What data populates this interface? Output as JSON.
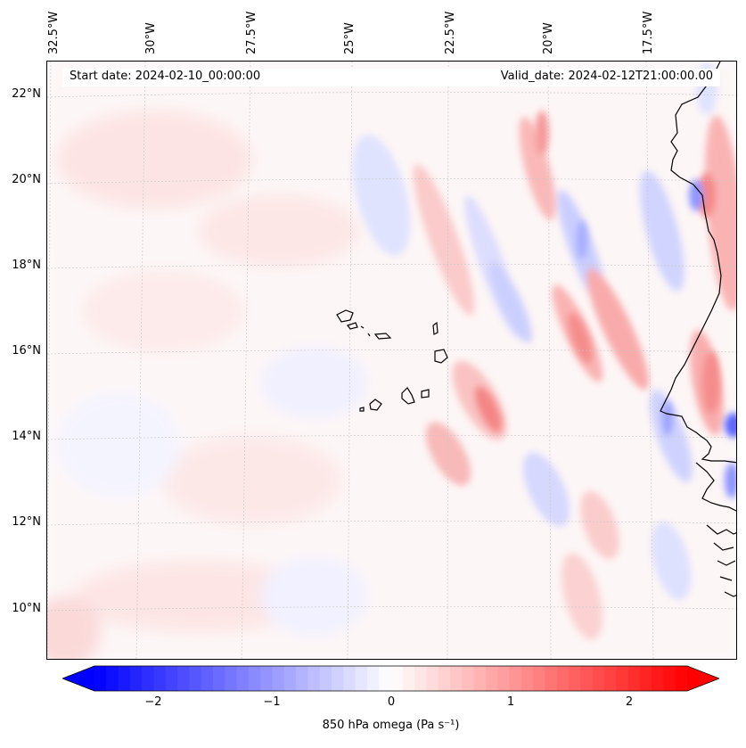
{
  "map": {
    "title_start": "Start date: 2024-02-10_00:00:00",
    "title_valid": "Valid_date: 2024-02-12T21:00:00.00",
    "lon_labels": [
      "32.5°W",
      "30°W",
      "27.5°W",
      "25°W",
      "22.5°W",
      "20°W",
      "17.5°W"
    ],
    "lat_labels": [
      "22°N",
      "20°N",
      "18°N",
      "16°N",
      "14°N",
      "12°N",
      "10°N"
    ],
    "extent": {
      "lon_min": -32.5,
      "lon_max": -15.8,
      "lat_min": 8.9,
      "lat_max": 22.7
    },
    "features": [
      "Cape Verde islands",
      "West African coastline (Mauritania, Senegal, Gambia, Guinea-Bissau)"
    ]
  },
  "colorbar": {
    "label": "850 hPa omega (Pa s⁻¹)",
    "ticks": [
      "−2",
      "−1",
      "0",
      "1",
      "2"
    ],
    "tick_values": [
      -2,
      -1,
      0,
      1,
      2
    ],
    "range": [
      -2.5,
      2.5
    ],
    "extend": "both",
    "cmap": "bwr",
    "colors": {
      "low": "#0000ff",
      "mid": "#ffffff",
      "high": "#ff0000"
    }
  }
}
